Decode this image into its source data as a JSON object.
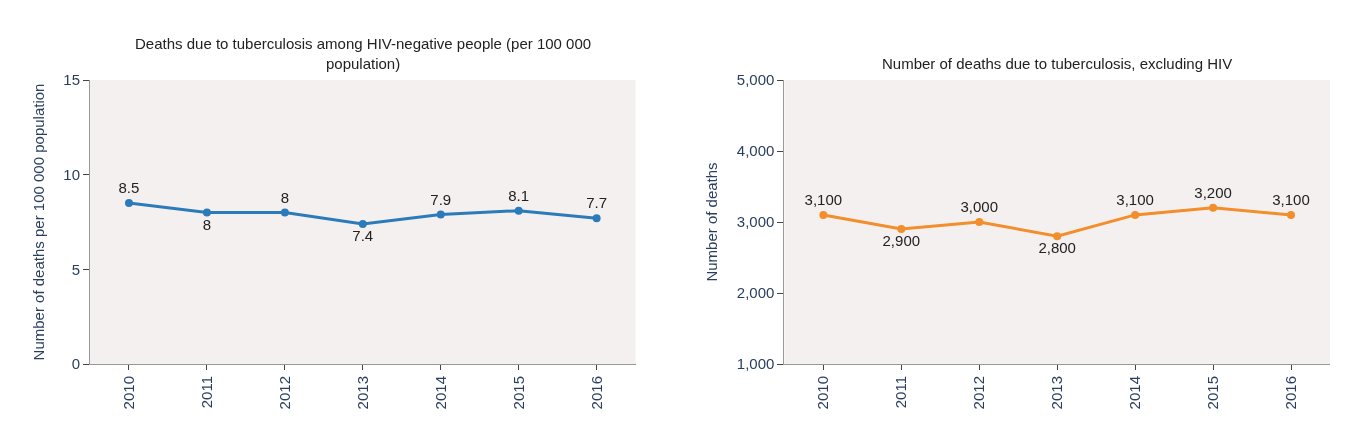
{
  "chart_data": [
    {
      "type": "line",
      "title": "Deaths due to tuberculosis among HIV-negative people (per 100 000 population)",
      "ylabel": "Number of deaths per 100 000 population",
      "categories": [
        "2010",
        "2011",
        "2012",
        "2013",
        "2014",
        "2015",
        "2016"
      ],
      "series": [
        {
          "color": "#2b7bba",
          "values": [
            8.5,
            8,
            8,
            7.4,
            7.9,
            8.1,
            7.7
          ]
        }
      ],
      "ylim": [
        0,
        15
      ],
      "yticks": [
        0,
        5,
        10,
        15
      ],
      "data_labels": true,
      "marker": "circle",
      "line_style": "solid",
      "grid": false
    },
    {
      "type": "line",
      "title": "Number of deaths due to tuberculosis, excluding HIV",
      "ylabel": "Number of deaths",
      "categories": [
        "2010",
        "2011",
        "2012",
        "2013",
        "2014",
        "2015",
        "2016"
      ],
      "series": [
        {
          "color": "#f28e2b",
          "values": [
            3100,
            2900,
            3000,
            2800,
            3100,
            3200,
            3100
          ],
          "value_labels": [
            "3,100",
            "2,900",
            "3,000",
            "2,800",
            "3,100",
            "3,200",
            "3,100"
          ]
        }
      ],
      "ylim": [
        1000,
        5000
      ],
      "yticks": [
        {
          "value": 1000,
          "label": "1,000"
        },
        {
          "value": 2000,
          "label": "2,000"
        },
        {
          "value": 3000,
          "label": "3,000"
        },
        {
          "value": 4000,
          "label": "4,000"
        },
        {
          "value": 5000,
          "label": "5,000"
        }
      ],
      "marker": "circle",
      "line_style": "solid",
      "grid": false
    }
  ]
}
